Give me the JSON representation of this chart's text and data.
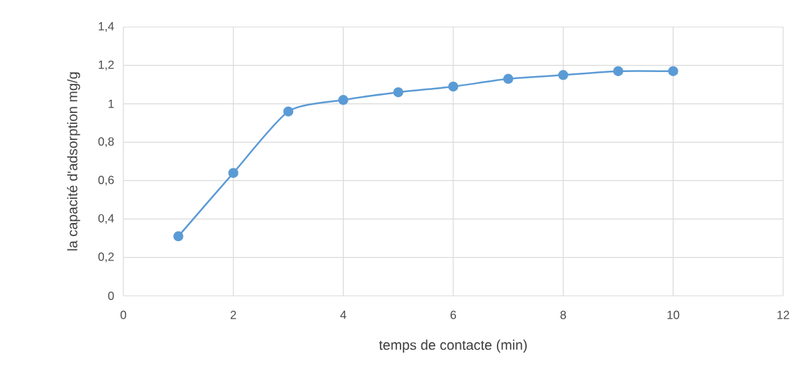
{
  "chart_data": {
    "type": "line",
    "xlabel": "temps de contacte (min)",
    "ylabel": "la capacité d'adsorption mg/g",
    "x": [
      1,
      2,
      3,
      4,
      5,
      6,
      7,
      8,
      9,
      10
    ],
    "series": [
      {
        "color": "#5b9bd5",
        "values": [
          0.31,
          0.64,
          0.96,
          1.02,
          1.06,
          1.09,
          1.13,
          1.15,
          1.17,
          1.17
        ]
      }
    ],
    "xlim": [
      0,
      12
    ],
    "xticks": [
      0,
      2,
      4,
      6,
      8,
      10,
      12
    ],
    "ylim": [
      0,
      1.4
    ],
    "yticks": [
      0,
      {
        "value": 0.2,
        "label": "0,2"
      },
      {
        "value": 0.4,
        "label": "0,4"
      },
      {
        "value": 0.6,
        "label": "0,6"
      },
      {
        "value": 0.8,
        "label": "0,8"
      },
      1,
      {
        "value": 1.2,
        "label": "1,2"
      },
      {
        "value": 1.4,
        "label": "1,4"
      }
    ],
    "grid": true,
    "marker": "circle",
    "line_style": "solid"
  }
}
